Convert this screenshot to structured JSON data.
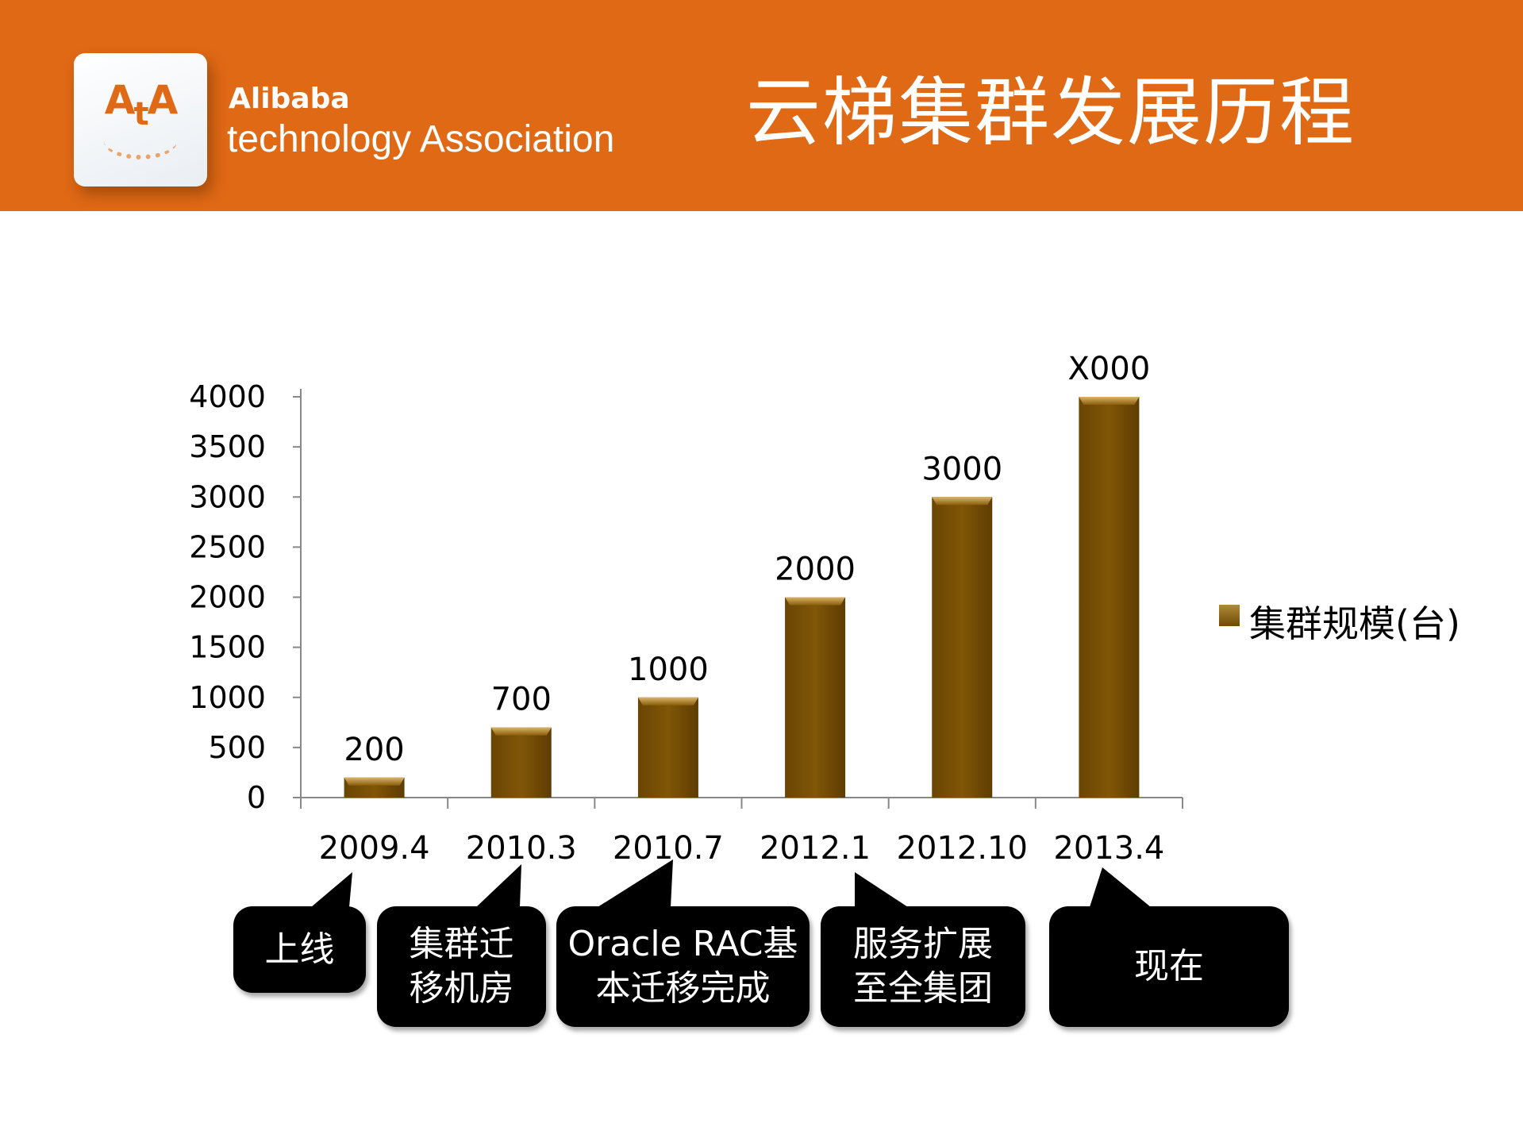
{
  "header": {
    "logo_text": "AtA",
    "brand_line1": "Alibaba",
    "brand_line2": "technology Association",
    "title": "云梯集群发展历程",
    "color": "#e06915"
  },
  "chart_data": {
    "type": "bar",
    "categories": [
      "2009.4",
      "2010.3",
      "2010.7",
      "2012.1",
      "2012.10",
      "2013.4"
    ],
    "series": [
      {
        "name": "集群规模(台)",
        "values": [
          200,
          700,
          1000,
          2000,
          3000,
          4000
        ],
        "color": "#7a5206"
      }
    ],
    "data_labels": [
      "200",
      "700",
      "1000",
      "2000",
      "3000",
      "X000"
    ],
    "ylim": [
      0,
      4000
    ],
    "yticks": [
      "0",
      "500",
      "1000",
      "1500",
      "2000",
      "2500",
      "3000",
      "3500",
      "4000"
    ],
    "legend_position": "right",
    "grid": false
  },
  "callouts": [
    {
      "text": "上线",
      "category": "2009.4"
    },
    {
      "text": "集群迁\n移机房",
      "category": "2010.3"
    },
    {
      "text": "Oracle RAC基\n本迁移完成",
      "category": "2010.7"
    },
    {
      "text": "服务扩展\n至全集团",
      "category": "2012.1"
    },
    {
      "text": "现在",
      "category": "2013.4"
    }
  ]
}
